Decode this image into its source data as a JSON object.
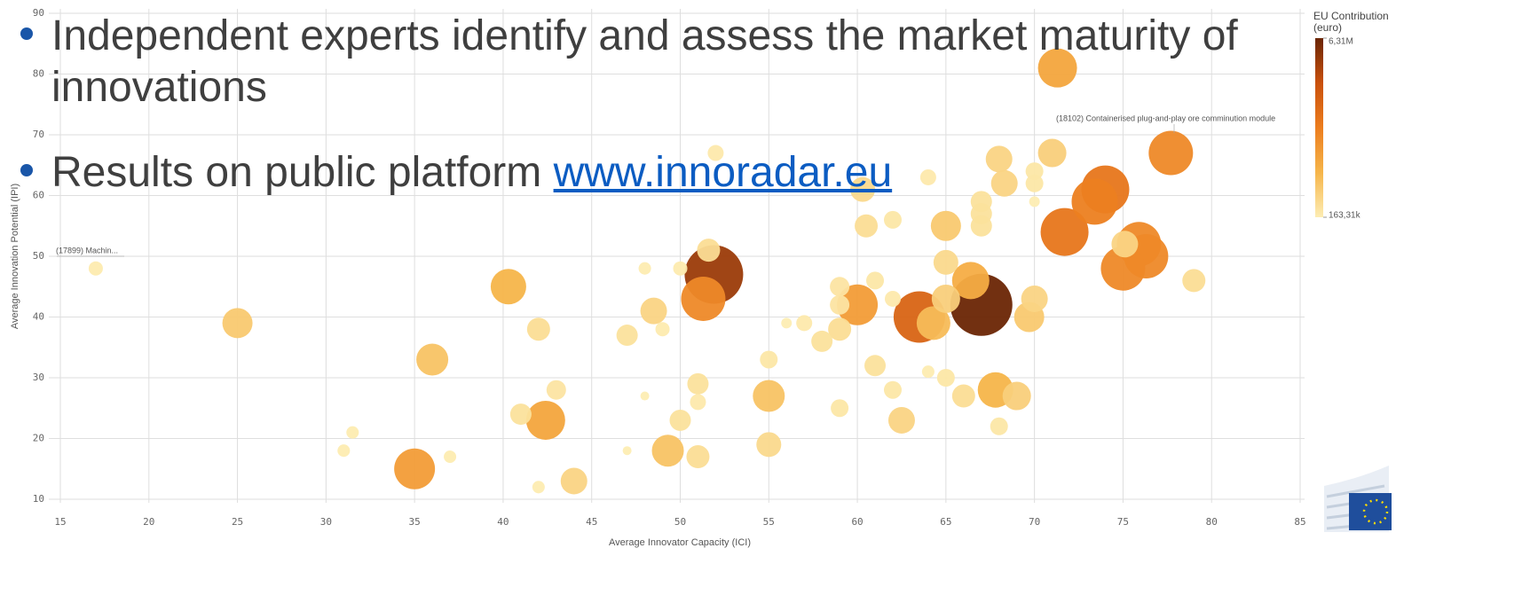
{
  "chart_data": {
    "type": "scatter",
    "x_label": "Average Innovator Capacity (ICI)",
    "y_label": "Average Innovation Potential (IPI)",
    "xlim": [
      15,
      85
    ],
    "xticks": [
      15,
      20,
      25,
      30,
      35,
      40,
      45,
      50,
      55,
      60,
      65,
      70,
      75,
      80,
      85
    ],
    "ylim": [
      10,
      90
    ],
    "yticks": [
      10,
      20,
      30,
      40,
      50,
      60,
      70,
      80,
      90
    ],
    "grid": true,
    "colorscale": [
      "#fdedb3",
      "#f6b54a",
      "#ec7d1e",
      "#c9500c",
      "#6a2504"
    ],
    "colorbar": {
      "title": "EU Contribution (euro)",
      "ticks": [
        {
          "value": 6310000,
          "label": "6,31M"
        },
        {
          "value": 163310,
          "label": "163,31k"
        }
      ]
    },
    "annotations": [
      "(17899) Machin...",
      "(18102) Containerised plug-and-play ore comminution module"
    ],
    "x": [
      17,
      25,
      35,
      36,
      31,
      31.5,
      37,
      40.3,
      41,
      42.4,
      42,
      43,
      42,
      44,
      47,
      48,
      48,
      48.5,
      49,
      49.3,
      50,
      50,
      51,
      51,
      51,
      51.6,
      51.9,
      51.3,
      52,
      55,
      55,
      55,
      56,
      57,
      58,
      59,
      59,
      59,
      59,
      60,
      60.3,
      60.5,
      61,
      61,
      62,
      62,
      62,
      62.5,
      63.5,
      64,
      64.3,
      65,
      65,
      65,
      65,
      66,
      66.4,
      67,
      67,
      67,
      67,
      67.8,
      68,
      68.3,
      68,
      69,
      69.7,
      70,
      70,
      70,
      70,
      71,
      71.3,
      71.7,
      73.4,
      74,
      75.9,
      76.3,
      75,
      75.1,
      77.7,
      79,
      64,
      47
    ],
    "y": [
      48,
      39,
      15,
      33,
      18,
      21,
      17,
      45,
      24,
      23,
      38,
      28,
      12,
      13,
      37,
      48,
      27,
      41,
      38,
      18,
      23,
      48,
      29,
      26,
      17,
      51,
      47,
      43,
      67,
      33,
      27,
      19,
      39,
      39,
      36,
      45,
      42,
      38,
      25,
      42,
      61,
      55,
      46,
      32,
      56,
      43,
      28,
      23,
      40,
      31,
      39,
      55,
      49,
      43,
      30,
      27,
      46,
      42,
      59,
      57,
      55,
      28,
      66,
      62,
      22,
      27,
      40,
      43,
      64,
      62,
      59,
      67,
      81,
      54,
      59,
      61,
      52,
      50,
      48,
      52,
      67,
      46,
      63,
      18
    ],
    "sizes": [
      225000,
      1147000,
      2376000,
      1318000,
      191000,
      191000,
      191000,
      1700000,
      498000,
      2137000,
      600000,
      409000,
      191000,
      846000,
      498000,
      191000,
      163310,
      846000,
      225000,
      1318000,
      498000,
      225000,
      498000,
      273000,
      600000,
      600000,
      5518000,
      2895000,
      273000,
      334000,
      1318000,
      717000,
      170000,
      273000,
      498000,
      409000,
      409000,
      600000,
      334000,
      2376000,
      717000,
      600000,
      334000,
      498000,
      334000,
      273000,
      334000,
      846000,
      4097000,
      191000,
      1502000,
      1147000,
      717000,
      990000,
      334000,
      600000,
      1912000,
      6310000,
      498000,
      498000,
      498000,
      1700000,
      846000,
      846000,
      334000,
      990000,
      1147000,
      846000,
      334000,
      334000,
      170000,
      990000,
      2137000,
      3469000,
      3175000,
      3469000,
      2895000,
      2895000,
      2895000,
      846000,
      2895000,
      600000,
      273000,
      163310
    ]
  },
  "bullets": [
    "Independent experts identify and assess the market maturity of innovations",
    "Results on public platform "
  ],
  "link": "www.innoradar.eu"
}
